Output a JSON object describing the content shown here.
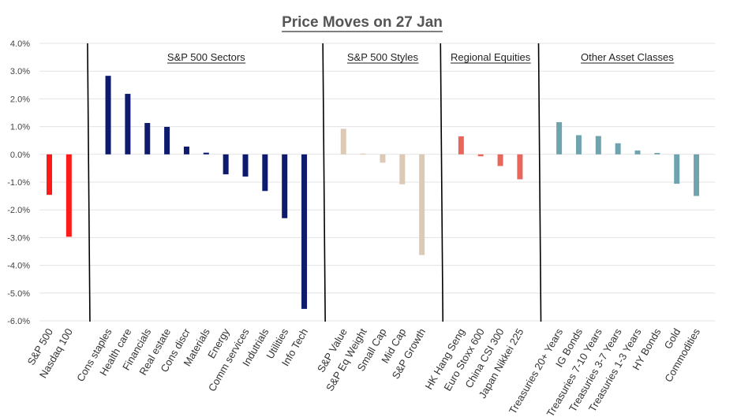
{
  "chart_data": {
    "type": "bar",
    "title": "Price Moves on 27 Jan",
    "xlabel": "",
    "ylabel": "",
    "ylim": [
      -6.0,
      4.0
    ],
    "yticks": [
      4.0,
      3.0,
      2.0,
      1.0,
      0.0,
      -1.0,
      -2.0,
      -3.0,
      -4.0,
      -5.0,
      -6.0
    ],
    "ytick_labels": [
      "4.0%",
      "3.0%",
      "2.0%",
      "1.0%",
      "0.0%",
      "-1.0%",
      "-2.0%",
      "-3.0%",
      "-4.0%",
      "-5.0%",
      "-6.0%"
    ],
    "grid": true,
    "groups": [
      {
        "name": "",
        "color": "#ff1a1a",
        "categories": [
          "S&P 500",
          "Nasdaq 100"
        ],
        "values": [
          -1.46,
          -2.97
        ]
      },
      {
        "name": "S&P 500 Sectors",
        "color": "#0d1a6e",
        "categories": [
          "Cons staples",
          "Health care",
          "Financials",
          "Real estate",
          "Cons discr",
          "Materials",
          "Energy",
          "Comm services",
          "Indutrials",
          "Utilities",
          "Info Tech"
        ],
        "values": [
          2.83,
          2.18,
          1.13,
          0.99,
          0.28,
          0.06,
          -0.72,
          -0.8,
          -1.32,
          -2.3,
          -5.57
        ]
      },
      {
        "name": "S&P 500 Styles",
        "color": "#dcc9b6",
        "categories": [
          "S&P Value",
          "S&P Eq Weight",
          "Small Cap",
          "Mid Cap",
          "S&P Growth"
        ],
        "values": [
          0.92,
          0.03,
          -0.3,
          -1.08,
          -3.63
        ]
      },
      {
        "name": "Regional Equities",
        "color": "#e8675a",
        "categories": [
          "HK Hang Seng",
          "Euro Stoxx 600",
          "China CSI 300",
          "Japan Nikkei 225"
        ],
        "values": [
          0.65,
          -0.07,
          -0.42,
          -0.9
        ]
      },
      {
        "name": "Other Asset Classes",
        "color": "#6fa3ae",
        "categories": [
          "Treasuries 20+ Years",
          "IG Bonds",
          "Treasuries 7-10 Years",
          "Treasuries 3-7 Years",
          "Treasuries 1-3 Years",
          "HY Bonds",
          "Gold",
          "Commodities"
        ],
        "values": [
          1.16,
          0.69,
          0.66,
          0.4,
          0.14,
          0.05,
          -1.06,
          -1.5
        ]
      }
    ]
  }
}
